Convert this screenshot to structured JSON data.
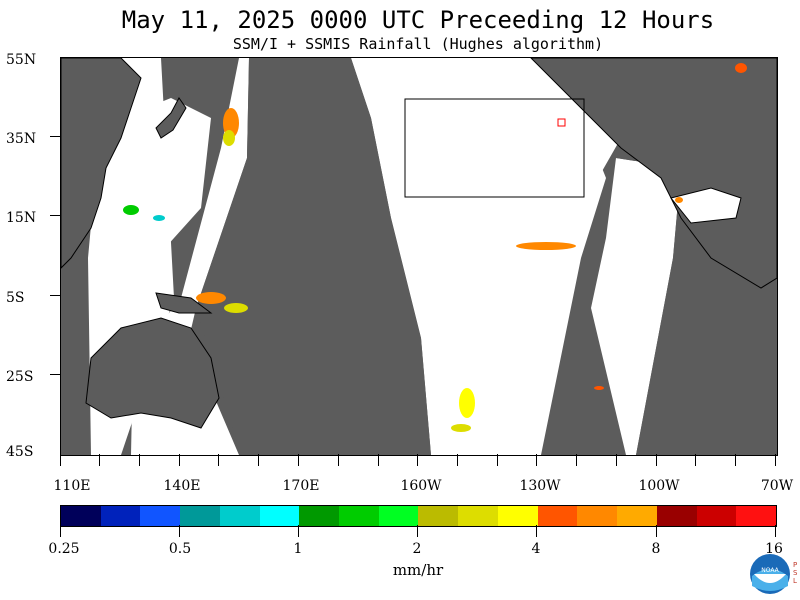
{
  "title": "May 11, 2025  0000 UTC  Preceeding 12 Hours",
  "subtitle": "SSM/I + SSMIS Rainfall (Hughes algorithm)",
  "y_axis_labels": [
    "55N",
    "35N",
    "15N",
    "5S",
    "25S",
    "45S"
  ],
  "x_axis_labels": [
    "110E",
    "140E",
    "170E",
    "160W",
    "130W",
    "100W",
    "70W"
  ],
  "colorbar": {
    "labels": [
      "0.25",
      "0.5",
      "1",
      "2",
      "4",
      "8",
      "16"
    ],
    "units": "mm/hr",
    "colors": [
      "#00005a",
      "#0022bb",
      "#1155ff",
      "#009999",
      "#00cccc",
      "#00ffff",
      "#009900",
      "#00cc00",
      "#00ff22",
      "#bbbb00",
      "#dddd00",
      "#ffff00",
      "#ff5500",
      "#ff8800",
      "#ffaa00",
      "#990000",
      "#cc0000",
      "#ff1111"
    ]
  },
  "colors": {
    "land": "#5c5c5c",
    "ocean_no_data": "#5c5c5c",
    "swath": "#ffffff",
    "box": "#000000"
  },
  "logo": {
    "name": "NOAA",
    "side_text": "PSL"
  }
}
